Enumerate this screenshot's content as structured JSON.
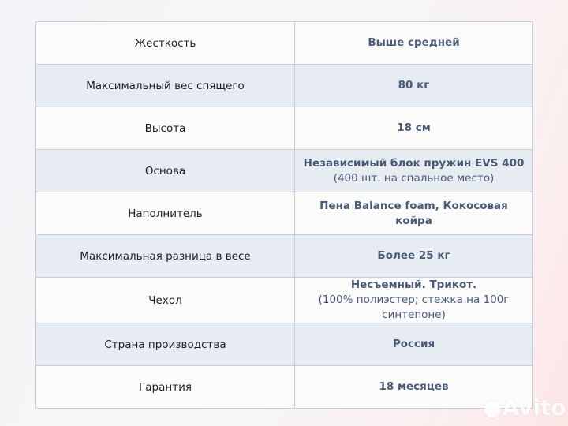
{
  "rows": [
    {
      "label": "Жесткость",
      "value": "Выше средней",
      "note": ""
    },
    {
      "label": "Максимальный вес спящего",
      "value": "80 кг",
      "note": ""
    },
    {
      "label": "Высота",
      "value": "18 см",
      "note": ""
    },
    {
      "label": "Основа",
      "value": "Независимый блок пружин EVS 400",
      "note": "(400 шт. на спальное место)"
    },
    {
      "label": "Наполнитель",
      "value": "Пена Balance foam, Кокосовая койра",
      "note": ""
    },
    {
      "label": "Максимальная разница в весе",
      "value": "Более 25 кг",
      "note": ""
    },
    {
      "label": "Чехол",
      "value": "Несъемный. Трикот.",
      "note": "(100% полиэстер; стежка на 100г синтепоне)"
    },
    {
      "label": "Страна производства",
      "value": "Россия",
      "note": ""
    },
    {
      "label": "Гарантия",
      "value": "18 месяцев",
      "note": ""
    }
  ],
  "watermark": "Avito",
  "colors": {
    "value_text": "#4b5a76",
    "alt_row": "#e7ebf2",
    "border": "#c8cdd6"
  }
}
